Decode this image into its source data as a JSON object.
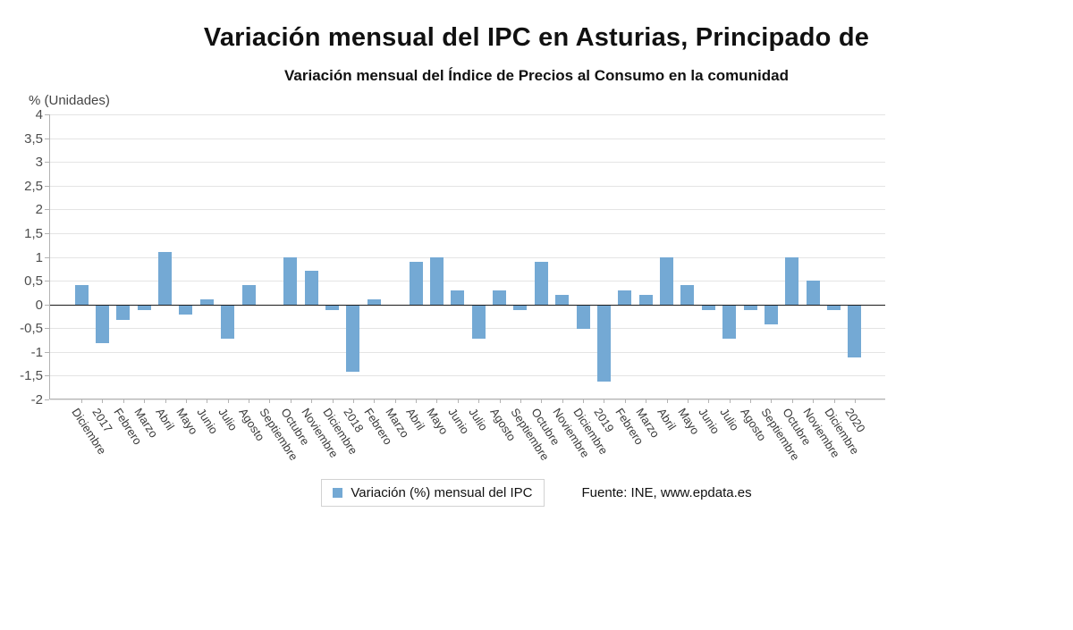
{
  "chart_data": {
    "type": "bar",
    "title": "Variación mensual del IPC en Asturias, Principado de",
    "subtitle": "Variación mensual del Índice de Precios al Consumo en la comunidad",
    "unit_label": "% (Unidades)",
    "ylim": [
      -2,
      4
    ],
    "ytick_step": 0.5,
    "ytick_labels": [
      "4",
      "3,5",
      "3",
      "2,5",
      "2",
      "1,5",
      "1",
      "0,5",
      "0",
      "-0,5",
      "-1",
      "-1,5",
      "-2"
    ],
    "grid": true,
    "legend": {
      "label": "Variación (%) mensual del IPC",
      "position": "bottom"
    },
    "source": "Fuente: INE, www.epdata.es",
    "bar_color": "#74a9d4",
    "categories": [
      "Diciembre",
      "2017",
      "Febrero",
      "Marzo",
      "Abril",
      "Mayo",
      "Junio",
      "Julio",
      "Agosto",
      "Septiembre",
      "Octubre",
      "Noviembre",
      "Diciembre",
      "2018",
      "Febrero",
      "Marzo",
      "Abril",
      "Mayo",
      "Junio",
      "Julio",
      "Agosto",
      "Septiembre",
      "Octubre",
      "Noviembre",
      "Diciembre",
      "2019",
      "Febrero",
      "Marzo",
      "Abril",
      "Mayo",
      "Junio",
      "Julio",
      "Agosto",
      "Septiembre",
      "Octubre",
      "Noviembre",
      "Diciembre",
      "2020"
    ],
    "values": [
      0.4,
      -0.8,
      -0.3,
      -0.1,
      1.1,
      -0.2,
      0.1,
      -0.7,
      0.4,
      0,
      1.0,
      0.7,
      -0.1,
      -1.4,
      0.1,
      0,
      0.9,
      1.0,
      0.3,
      -0.7,
      0.3,
      -0.1,
      0.9,
      0.2,
      -0.5,
      -1.6,
      0.3,
      0.2,
      1.0,
      0.4,
      -0.1,
      -0.7,
      -0.1,
      -0.4,
      1.0,
      0.5,
      -0.1,
      -1.1
    ]
  }
}
